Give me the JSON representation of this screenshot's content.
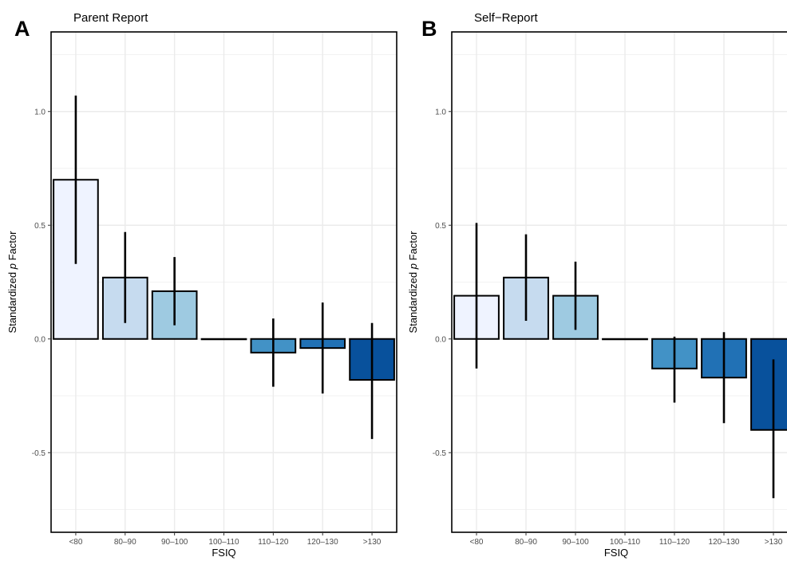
{
  "chart_data": [
    {
      "panel": "A",
      "title": "Parent Report",
      "type": "bar",
      "categories": [
        "<80",
        "80–90",
        "90–100",
        "100–110",
        "110–120",
        "120–130",
        ">130"
      ],
      "values": [
        0.7,
        0.27,
        0.21,
        0.0,
        -0.06,
        -0.04,
        -0.18
      ],
      "error_low": [
        0.33,
        0.07,
        0.06,
        0.0,
        -0.21,
        -0.24,
        -0.44
      ],
      "error_high": [
        1.07,
        0.47,
        0.36,
        0.0,
        0.09,
        0.16,
        0.07
      ],
      "colors": [
        "#eff3ff",
        "#c6dbef",
        "#9ecae1",
        "#6baed6",
        "#4292c6",
        "#2171b5",
        "#08519c"
      ],
      "xlabel": "FSIQ",
      "ylabel_pre": "Standardized ",
      "ylabel_italic": "p",
      "ylabel_post": " Factor",
      "ylim": [
        -0.85,
        1.35
      ],
      "yticks": [
        -0.5,
        0.0,
        0.5,
        1.0
      ],
      "ytick_labels": [
        "-0.5",
        "0.0",
        "0.5",
        "1.0"
      ],
      "grid": true
    },
    {
      "panel": "B",
      "title": "Self−Report",
      "type": "bar",
      "categories": [
        "<80",
        "80–90",
        "90–100",
        "100–110",
        "110–120",
        "120–130",
        ">130"
      ],
      "values": [
        0.19,
        0.27,
        0.19,
        0.0,
        -0.13,
        -0.17,
        -0.4
      ],
      "error_low": [
        -0.13,
        0.08,
        0.04,
        0.0,
        -0.28,
        -0.37,
        -0.7
      ],
      "error_high": [
        0.51,
        0.46,
        0.34,
        0.0,
        0.01,
        0.03,
        -0.09
      ],
      "colors": [
        "#eff3ff",
        "#c6dbef",
        "#9ecae1",
        "#6baed6",
        "#4292c6",
        "#2171b5",
        "#08519c"
      ],
      "xlabel": "FSIQ",
      "ylabel_pre": "Standardized ",
      "ylabel_italic": "p",
      "ylabel_post": " Factor",
      "ylim": [
        -0.85,
        1.35
      ],
      "yticks": [
        -0.5,
        0.0,
        0.5,
        1.0
      ],
      "ytick_labels": [
        "-0.5",
        "0.0",
        "0.5",
        "1.0"
      ],
      "grid": true
    }
  ]
}
